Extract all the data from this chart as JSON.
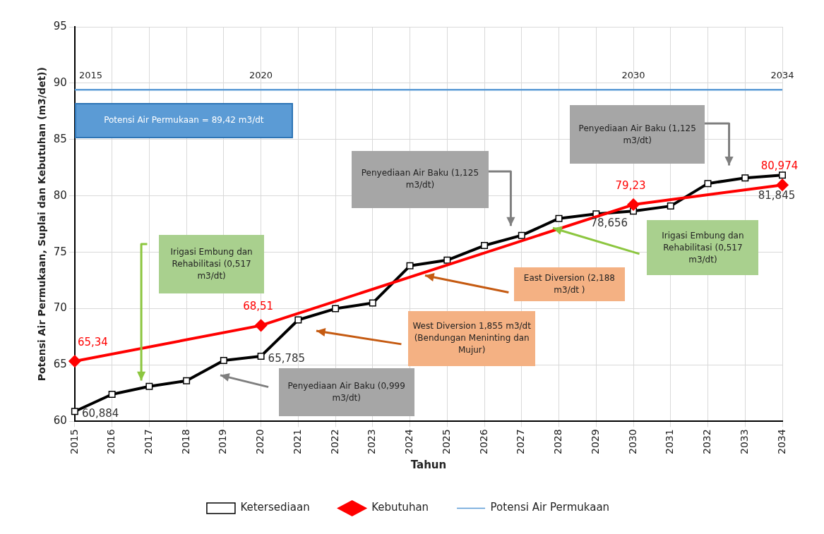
{
  "chart_data": {
    "type": "line",
    "xlabel": "Tahun",
    "ylabel": "Potensi Air Permukaan, Suplai dan Kebutuhan (m3/det))",
    "categories": [
      "2015",
      "2016",
      "2017",
      "2018",
      "2019",
      "2020",
      "2021",
      "2022",
      "2023",
      "2024",
      "2025",
      "2026",
      "2027",
      "2028",
      "2029",
      "2030",
      "2031",
      "2032",
      "2033",
      "2034"
    ],
    "ylim": [
      60,
      95
    ],
    "yticks": [
      60,
      65,
      70,
      75,
      80,
      85,
      90,
      95
    ],
    "grid": true,
    "legend": "bottom",
    "series": [
      {
        "name": "Ketersediaan",
        "color": "#000000",
        "marker": "square",
        "values": [
          60.884,
          62.4,
          63.1,
          63.6,
          65.4,
          65.785,
          69.0,
          70.0,
          70.5,
          73.8,
          74.3,
          75.6,
          76.5,
          78.0,
          78.4,
          78.656,
          79.1,
          81.1,
          81.6,
          81.845
        ],
        "value_labels": [
          "60,884",
          null,
          null,
          null,
          null,
          "65,785",
          null,
          null,
          null,
          null,
          null,
          null,
          null,
          null,
          null,
          "78,656",
          null,
          null,
          null,
          "81,845"
        ]
      },
      {
        "name": "Kebutuhan",
        "color": "#ff0000",
        "marker": "diamond",
        "values": [
          65.34,
          null,
          null,
          null,
          null,
          68.51,
          null,
          null,
          null,
          null,
          null,
          null,
          null,
          null,
          null,
          79.23,
          null,
          null,
          null,
          80.974
        ],
        "value_labels": [
          "65,34",
          null,
          null,
          null,
          null,
          "68,51",
          null,
          null,
          null,
          null,
          null,
          null,
          null,
          null,
          null,
          "79,23",
          null,
          null,
          null,
          "80,974"
        ]
      },
      {
        "name": "Potensi Air Permukaan",
        "color": "#5b9bd5",
        "marker": "none",
        "values": [
          89.42,
          89.42,
          89.42,
          89.42,
          89.42,
          89.42,
          89.42,
          89.42,
          89.42,
          89.42,
          89.42,
          89.42,
          89.42,
          89.42,
          89.42,
          89.42,
          89.42,
          89.42,
          89.42,
          89.42
        ]
      }
    ],
    "annotations": [
      "Potensi  Air Permukaan = 89,42 m3/dt",
      "Irigasi Embung dan Rehabilitasi (0,517 m3/dt)",
      "Penyediaan Air Baku (0,999 m3/dt)",
      "West Diversion  1,855 m3/dt (Bendungan Meninting dan Mujur)",
      "East Diversion (2,188 m3/dt )",
      "Penyediaan Air Baku (1,125 m3/dt)",
      "Irigasi Embung dan Rehabilitasi (0,517 m3/dt)",
      "Penyediaan Air Baku (1,125 m3/dt)",
      {
        "text": "2015",
        "x": "2015",
        "y": 89.42
      },
      {
        "text": "2020",
        "x": "2020",
        "y": 89.42
      },
      {
        "text": "2030",
        "x": "2030",
        "y": 89.42
      },
      {
        "text": "2034",
        "x": "2034",
        "y": 89.42
      }
    ]
  }
}
